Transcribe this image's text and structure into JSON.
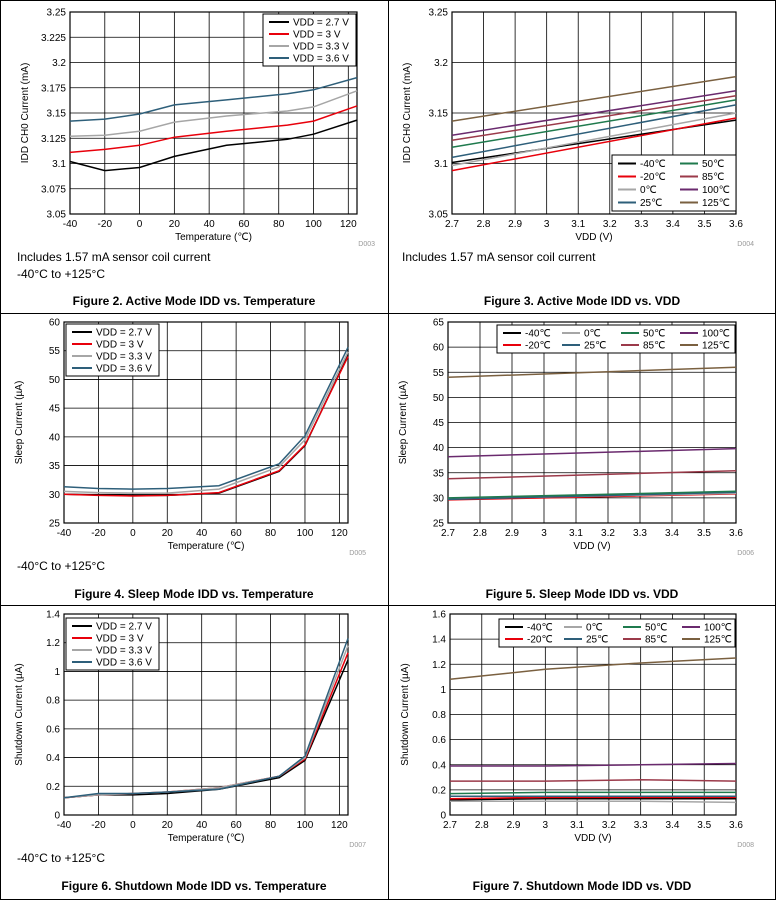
{
  "panels": [
    {
      "id": "p1",
      "caption": "Figure 2. Active Mode IDD vs. Temperature",
      "notes": [
        "Includes 1.57 mA sensor coil current",
        "-40°C to +125°C"
      ],
      "code": "D003",
      "colors": {
        "vdd27": "#000000",
        "vdd3": "#e8000b",
        "vdd33": "#a6a6a6",
        "vdd36": "#2e5f7a"
      }
    },
    {
      "id": "p2",
      "caption": "Figure 3. Active Mode IDD vs. VDD",
      "notes": [
        "Includes 1.57 mA sensor coil current"
      ],
      "code": "D004"
    },
    {
      "id": "p3",
      "caption": "Figure 4. Sleep Mode IDD vs. Temperature",
      "notes": [
        "-40°C to +125°C"
      ],
      "code": "D005"
    },
    {
      "id": "p4",
      "caption": "Figure 5. Sleep Mode IDD vs. VDD",
      "notes": [],
      "code": "D006"
    },
    {
      "id": "p5",
      "caption": "Figure 6. Shutdown Mode IDD vs. Temperature",
      "notes": [
        "-40°C to +125°C"
      ],
      "code": "D007"
    },
    {
      "id": "p6",
      "caption": "Figure 7. Shutdown Mode IDD vs. VDD",
      "notes": [],
      "code": "D008"
    }
  ],
  "chart_data": [
    {
      "type": "line",
      "xlabel": "Temperature (℃)",
      "ylabel": "IDD CH0 Current (mA)",
      "xlim": [
        -40,
        125
      ],
      "ylim": [
        3.05,
        3.25
      ],
      "xticks": [
        "-40",
        "-20",
        "0",
        "20",
        "40",
        "60",
        "80",
        "100",
        "120"
      ],
      "yticks": [
        "3.05",
        "3.075",
        "3.1",
        "3.125",
        "3.15",
        "3.175",
        "3.2",
        "3.225",
        "3.25"
      ],
      "xtick_values": [
        -40,
        -20,
        0,
        20,
        40,
        60,
        80,
        100,
        120
      ],
      "ytick_values": [
        3.05,
        3.075,
        3.1,
        3.125,
        3.15,
        3.175,
        3.2,
        3.225,
        3.25
      ],
      "grid": true,
      "legend_position": "top-right",
      "x": [
        -40,
        -20,
        0,
        20,
        50,
        85,
        100,
        125
      ],
      "series": [
        {
          "name": "VDD = 2.7 V",
          "color": "#000000",
          "values": [
            3.102,
            3.093,
            3.096,
            3.107,
            3.118,
            3.124,
            3.129,
            3.143
          ]
        },
        {
          "name": "VDD = 3 V",
          "color": "#e8000b",
          "values": [
            3.111,
            3.114,
            3.118,
            3.126,
            3.132,
            3.138,
            3.142,
            3.157
          ]
        },
        {
          "name": "VDD = 3.3 V",
          "color": "#a6a6a6",
          "values": [
            3.127,
            3.128,
            3.132,
            3.141,
            3.147,
            3.152,
            3.156,
            3.172
          ]
        },
        {
          "name": "VDD = 3.6 V",
          "color": "#2e5f7a",
          "values": [
            3.142,
            3.144,
            3.149,
            3.158,
            3.163,
            3.169,
            3.173,
            3.185
          ]
        }
      ]
    },
    {
      "type": "line",
      "xlabel": "VDD (V)",
      "ylabel": "IDD CH0 Current (mA)",
      "xlim": [
        2.7,
        3.6
      ],
      "ylim": [
        3.05,
        3.25
      ],
      "xticks": [
        "2.7",
        "2.8",
        "2.9",
        "3",
        "3.1",
        "3.2",
        "3.3",
        "3.4",
        "3.5",
        "3.6"
      ],
      "yticks": [
        "3.05",
        "3.1",
        "3.15",
        "3.2",
        "3.25"
      ],
      "xtick_values": [
        2.7,
        2.8,
        2.9,
        3.0,
        3.1,
        3.2,
        3.3,
        3.4,
        3.5,
        3.6
      ],
      "ytick_values": [
        3.05,
        3.1,
        3.15,
        3.2,
        3.25
      ],
      "grid": true,
      "legend_position": "bottom-right",
      "legend_columns": 2,
      "x": [
        2.7,
        3.6
      ],
      "series": [
        {
          "name": "-40℃",
          "color": "#000000",
          "values": [
            3.101,
            3.143
          ]
        },
        {
          "name": "-20℃",
          "color": "#e8000b",
          "values": [
            3.093,
            3.145
          ]
        },
        {
          "name": "0℃",
          "color": "#a6a6a6",
          "values": [
            3.098,
            3.15
          ]
        },
        {
          "name": "25℃",
          "color": "#2e5f7a",
          "values": [
            3.106,
            3.158
          ]
        },
        {
          "name": "50℃",
          "color": "#1f7a4d",
          "values": [
            3.116,
            3.163
          ]
        },
        {
          "name": "85℃",
          "color": "#9b3a4a",
          "values": [
            3.123,
            3.167
          ]
        },
        {
          "name": "100℃",
          "color": "#6a2a6e",
          "values": [
            3.128,
            3.172
          ]
        },
        {
          "name": "125℃",
          "color": "#7a6040",
          "values": [
            3.142,
            3.186
          ]
        }
      ]
    },
    {
      "type": "line",
      "xlabel": "Temperature (℃)",
      "ylabel": "Sleep Current (µA)",
      "xlim": [
        -40,
        125
      ],
      "ylim": [
        25,
        60
      ],
      "xticks": [
        "-40",
        "-20",
        "0",
        "20",
        "40",
        "60",
        "80",
        "100",
        "120"
      ],
      "yticks": [
        "25",
        "30",
        "35",
        "40",
        "45",
        "50",
        "55",
        "60"
      ],
      "xtick_values": [
        -40,
        -20,
        0,
        20,
        40,
        60,
        80,
        100,
        120
      ],
      "ytick_values": [
        25,
        30,
        35,
        40,
        45,
        50,
        55,
        60
      ],
      "grid": true,
      "legend_position": "top-left",
      "x": [
        -40,
        -20,
        0,
        20,
        50,
        85,
        100,
        125
      ],
      "series": [
        {
          "name": "VDD = 2.7 V",
          "color": "#000000",
          "values": [
            30.0,
            29.9,
            29.8,
            29.8,
            30.2,
            34.0,
            38.5,
            54.2
          ]
        },
        {
          "name": "VDD = 3 V",
          "color": "#e8000b",
          "values": [
            30.0,
            29.8,
            29.7,
            29.8,
            30.3,
            34.1,
            38.6,
            54.0
          ]
        },
        {
          "name": "VDD = 3.3 V",
          "color": "#a6a6a6",
          "values": [
            30.5,
            30.3,
            30.2,
            30.2,
            30.9,
            34.8,
            39.5,
            54.8
          ]
        },
        {
          "name": "VDD = 3.6 V",
          "color": "#2e5f7a",
          "values": [
            31.3,
            31.0,
            30.9,
            31.0,
            31.5,
            35.3,
            40.2,
            55.6
          ]
        }
      ]
    },
    {
      "type": "line",
      "xlabel": "VDD (V)",
      "ylabel": "Sleep Current (µA)",
      "xlim": [
        2.7,
        3.6
      ],
      "ylim": [
        25,
        65
      ],
      "xticks": [
        "2.7",
        "2.8",
        "2.9",
        "3",
        "3.1",
        "3.2",
        "3.3",
        "3.4",
        "3.5",
        "3.6"
      ],
      "yticks": [
        "25",
        "30",
        "35",
        "40",
        "45",
        "50",
        "55",
        "60",
        "65"
      ],
      "xtick_values": [
        2.7,
        2.8,
        2.9,
        3.0,
        3.1,
        3.2,
        3.3,
        3.4,
        3.5,
        3.6
      ],
      "ytick_values": [
        25,
        30,
        35,
        40,
        45,
        50,
        55,
        60,
        65
      ],
      "grid": true,
      "legend_position": "top-right",
      "legend_columns": 4,
      "x": [
        2.7,
        3.6
      ],
      "series": [
        {
          "name": "-40℃",
          "color": "#000000",
          "values": [
            29.9,
            31.0
          ]
        },
        {
          "name": "-20℃",
          "color": "#e8000b",
          "values": [
            29.6,
            30.8
          ]
        },
        {
          "name": "0℃",
          "color": "#a6a6a6",
          "values": [
            29.8,
            30.9
          ]
        },
        {
          "name": "25℃",
          "color": "#2e5f7a",
          "values": [
            29.7,
            31.1
          ]
        },
        {
          "name": "50℃",
          "color": "#1f7a4d",
          "values": [
            30.0,
            31.3
          ]
        },
        {
          "name": "85℃",
          "color": "#9b3a4a",
          "values": [
            33.8,
            35.4
          ]
        },
        {
          "name": "100℃",
          "color": "#6a2a6e",
          "values": [
            38.2,
            39.8
          ]
        },
        {
          "name": "125℃",
          "color": "#7a6040",
          "values": [
            54.0,
            56.0
          ]
        }
      ]
    },
    {
      "type": "line",
      "xlabel": "Temperature (℃)",
      "ylabel": "Shutdown Current (µA)",
      "xlim": [
        -40,
        125
      ],
      "ylim": [
        0,
        1.4
      ],
      "xticks": [
        "-40",
        "-20",
        "0",
        "20",
        "40",
        "60",
        "80",
        "100",
        "120"
      ],
      "yticks": [
        "0",
        "0.2",
        "0.4",
        "0.6",
        "0.8",
        "1",
        "1.2",
        "1.4"
      ],
      "xtick_values": [
        -40,
        -20,
        0,
        20,
        40,
        60,
        80,
        100,
        120
      ],
      "ytick_values": [
        0,
        0.2,
        0.4,
        0.6,
        0.8,
        1.0,
        1.2,
        1.4
      ],
      "grid": true,
      "legend_position": "top-left",
      "x": [
        -40,
        -20,
        0,
        20,
        50,
        85,
        100,
        125
      ],
      "series": [
        {
          "name": "VDD = 2.7 V",
          "color": "#000000",
          "values": [
            0.12,
            0.14,
            0.14,
            0.15,
            0.18,
            0.26,
            0.38,
            1.08
          ]
        },
        {
          "name": "VDD = 3 V",
          "color": "#e8000b",
          "values": [
            0.12,
            0.14,
            0.15,
            0.16,
            0.19,
            0.27,
            0.39,
            1.13
          ]
        },
        {
          "name": "VDD = 3.3 V",
          "color": "#a6a6a6",
          "values": [
            0.12,
            0.14,
            0.15,
            0.16,
            0.19,
            0.27,
            0.4,
            1.18
          ]
        },
        {
          "name": "VDD = 3.6 V",
          "color": "#2e5f7a",
          "values": [
            0.12,
            0.15,
            0.15,
            0.16,
            0.18,
            0.27,
            0.41,
            1.23
          ]
        }
      ]
    },
    {
      "type": "line",
      "xlabel": "VDD (V)",
      "ylabel": "Shutdown Current (µA)",
      "xlim": [
        2.7,
        3.6
      ],
      "ylim": [
        0,
        1.6
      ],
      "xticks": [
        "2.7",
        "2.8",
        "2.9",
        "3",
        "3.1",
        "3.2",
        "3.3",
        "3.4",
        "3.5",
        "3.6"
      ],
      "yticks": [
        "0",
        "0.2",
        "0.4",
        "0.6",
        "0.8",
        "1",
        "1.2",
        "1.4",
        "1.6"
      ],
      "xtick_values": [
        2.7,
        2.8,
        2.9,
        3.0,
        3.1,
        3.2,
        3.3,
        3.4,
        3.5,
        3.6
      ],
      "ytick_values": [
        0,
        0.2,
        0.4,
        0.6,
        0.8,
        1.0,
        1.2,
        1.4,
        1.6
      ],
      "grid": true,
      "legend_position": "top-right",
      "legend_columns": 4,
      "x": [
        2.7,
        3.0,
        3.3,
        3.6
      ],
      "series": [
        {
          "name": "-40℃",
          "color": "#000000",
          "values": [
            0.12,
            0.13,
            0.13,
            0.13
          ]
        },
        {
          "name": "-20℃",
          "color": "#e8000b",
          "values": [
            0.13,
            0.14,
            0.14,
            0.14
          ]
        },
        {
          "name": "0℃",
          "color": "#a6a6a6",
          "values": [
            0.11,
            0.11,
            0.11,
            0.1
          ]
        },
        {
          "name": "25℃",
          "color": "#2e5f7a",
          "values": [
            0.15,
            0.15,
            0.15,
            0.15
          ]
        },
        {
          "name": "50℃",
          "color": "#1f7a4d",
          "values": [
            0.17,
            0.18,
            0.18,
            0.18
          ]
        },
        {
          "name": "85℃",
          "color": "#9b3a4a",
          "values": [
            0.27,
            0.27,
            0.28,
            0.27
          ]
        },
        {
          "name": "100℃",
          "color": "#6a2a6e",
          "values": [
            0.39,
            0.39,
            0.4,
            0.41
          ]
        },
        {
          "name": "125℃",
          "color": "#7a6040",
          "values": [
            1.08,
            1.16,
            1.21,
            1.25
          ]
        }
      ]
    }
  ]
}
